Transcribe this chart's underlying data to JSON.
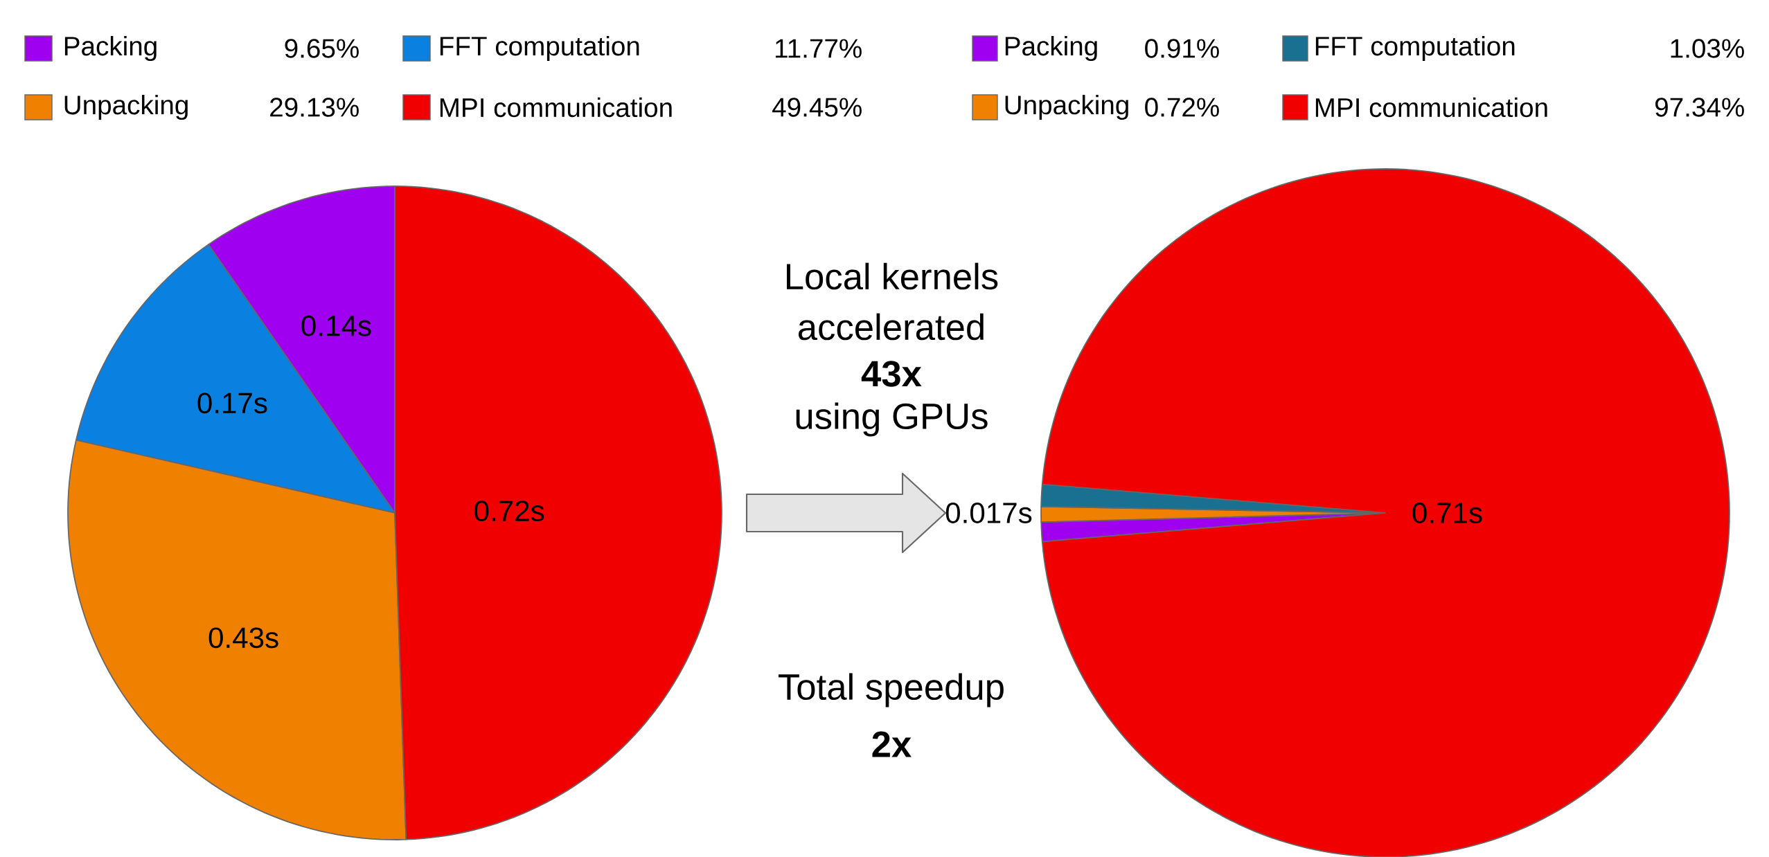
{
  "chart_data": [
    {
      "type": "pie",
      "categories": [
        "Packing",
        "Unpacking",
        "FFT computation",
        "MPI communication"
      ],
      "values": [
        9.65,
        29.13,
        11.77,
        49.45
      ],
      "colors": [
        "#a000f0",
        "#f08000",
        "#0a80e0",
        "#f00000"
      ],
      "value_labels": [
        "9.65%",
        "29.13%",
        "11.77%",
        "49.45%"
      ],
      "legend": "top",
      "annotations": [
        {
          "text": "0.14s",
          "x": "Packing"
        },
        {
          "text": "0.43s",
          "x": "Unpacking"
        },
        {
          "text": "0.17s",
          "x": "FFT computation"
        },
        {
          "text": "0.72s",
          "x": "MPI communication"
        }
      ]
    },
    {
      "type": "other",
      "annotations": [
        "Local kernels",
        "accelerated",
        "**43x**",
        "using GPUs",
        "Total speedup",
        "**2x**"
      ]
    },
    {
      "type": "pie",
      "categories": [
        "Packing",
        "Unpacking",
        "FFT computation",
        "MPI communication"
      ],
      "values": [
        0.91,
        0.72,
        1.03,
        97.34
      ],
      "colors": [
        "#a000f0",
        "#f08000",
        "#1a7090",
        "#f00000"
      ],
      "value_labels": [
        "0.91%",
        "0.72%",
        "1.03%",
        "97.34%"
      ],
      "legend": "top",
      "annotations": [
        {
          "text": "0.71s",
          "x": "MPI communication"
        },
        "0.017s"
      ]
    }
  ]
}
